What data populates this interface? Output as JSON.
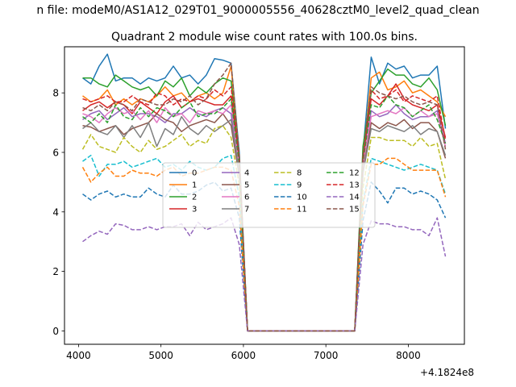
{
  "figure": {
    "suptitle": "n file: modeM0/AS1A12_029T01_9000005556_40628cztM0_level2_quad_clean",
    "offset_label": "+4.1824e8"
  },
  "chart_data": {
    "type": "line",
    "title": "Quadrant 2 module wise count rates with 100.0s bins.",
    "xlabel": "",
    "ylabel": "",
    "xlim": [
      3830,
      8680
    ],
    "ylim": [
      -0.45,
      9.55
    ],
    "x_offset": 418240000,
    "xticks": [
      4000,
      5000,
      6000,
      7000,
      8000
    ],
    "yticks": [
      0,
      2,
      4,
      6,
      8
    ],
    "grid": false,
    "legend_position": "center",
    "legend_columns": 4,
    "x": [
      4050,
      4150,
      4250,
      4350,
      4450,
      4550,
      4650,
      4750,
      4850,
      4950,
      5050,
      5150,
      5250,
      5350,
      5450,
      5550,
      5650,
      5750,
      5850,
      5950,
      6050,
      6150,
      6250,
      6350,
      6450,
      6550,
      6650,
      6750,
      6850,
      6950,
      7050,
      7150,
      7250,
      7350,
      7450,
      7550,
      7650,
      7750,
      7850,
      7950,
      8050,
      8150,
      8250,
      8350,
      8450
    ],
    "series": [
      {
        "name": "0",
        "style": "solid",
        "color": "#1f77b4",
        "values": [
          8.5,
          8.3,
          8.9,
          9.3,
          8.4,
          8.5,
          8.5,
          8.3,
          8.5,
          8.4,
          8.5,
          8.9,
          8.5,
          8.6,
          8.3,
          8.6,
          9.15,
          9.1,
          9.0,
          6.0,
          0,
          0,
          0,
          0,
          0,
          0,
          0,
          0,
          0,
          0,
          0,
          0,
          0,
          0,
          6.0,
          9.2,
          8.3,
          9.0,
          8.8,
          8.9,
          8.5,
          8.6,
          8.6,
          8.9,
          6.8
        ]
      },
      {
        "name": "1",
        "style": "solid",
        "color": "#ff7f0e",
        "values": [
          7.9,
          7.7,
          7.8,
          8.1,
          7.6,
          7.8,
          7.6,
          7.8,
          7.7,
          7.9,
          8.2,
          7.9,
          8.0,
          7.7,
          7.9,
          8.0,
          7.8,
          8.0,
          8.9,
          5.8,
          0,
          0,
          0,
          0,
          0,
          0,
          0,
          0,
          0,
          0,
          0,
          0,
          0,
          0,
          5.8,
          8.5,
          8.7,
          8.1,
          8.2,
          8.4,
          8.0,
          8.1,
          7.9,
          7.7,
          7.2
        ]
      },
      {
        "name": "2",
        "style": "solid",
        "color": "#2ca02c",
        "values": [
          8.5,
          8.5,
          8.3,
          8.2,
          8.6,
          8.4,
          8.2,
          8.1,
          8.2,
          7.9,
          8.4,
          8.2,
          8.5,
          7.9,
          8.2,
          8.0,
          8.3,
          8.5,
          8.4,
          5.8,
          0,
          0,
          0,
          0,
          0,
          0,
          0,
          0,
          0,
          0,
          0,
          0,
          0,
          0,
          6.2,
          8.0,
          8.4,
          8.8,
          8.6,
          8.6,
          8.3,
          8.2,
          8.5,
          8.1,
          6.9
        ]
      },
      {
        "name": "3",
        "style": "solid",
        "color": "#d62728",
        "values": [
          7.4,
          7.6,
          7.7,
          7.5,
          7.7,
          7.6,
          7.3,
          7.7,
          7.5,
          7.3,
          7.7,
          7.9,
          7.5,
          7.7,
          7.8,
          7.7,
          7.6,
          7.6,
          7.9,
          5.6,
          0,
          0,
          0,
          0,
          0,
          0,
          0,
          0,
          0,
          0,
          0,
          0,
          0,
          0,
          5.8,
          7.8,
          7.6,
          7.9,
          8.3,
          7.8,
          7.6,
          7.5,
          7.4,
          7.6,
          6.5
        ]
      },
      {
        "name": "4",
        "style": "solid",
        "color": "#9467bd",
        "values": [
          7.1,
          7.3,
          7.4,
          7.1,
          7.3,
          7.5,
          7.2,
          7.3,
          7.3,
          7.2,
          7.0,
          7.3,
          7.3,
          7.5,
          7.3,
          7.2,
          7.4,
          7.5,
          7.3,
          5.5,
          0,
          0,
          0,
          0,
          0,
          0,
          0,
          0,
          0,
          0,
          0,
          0,
          0,
          0,
          5.5,
          7.4,
          7.2,
          7.3,
          7.6,
          7.3,
          7.1,
          7.2,
          7.2,
          7.4,
          6.3
        ]
      },
      {
        "name": "5",
        "style": "solid",
        "color": "#8c564b",
        "values": [
          6.9,
          6.85,
          6.7,
          6.8,
          6.9,
          6.6,
          6.8,
          6.9,
          7.0,
          7.3,
          7.1,
          7.0,
          6.7,
          6.9,
          7.0,
          7.1,
          7.0,
          7.3,
          6.9,
          5.2,
          0,
          0,
          0,
          0,
          0,
          0,
          0,
          0,
          0,
          0,
          0,
          0,
          0,
          0,
          5.3,
          7.0,
          6.8,
          7.0,
          6.9,
          7.1,
          6.8,
          7.0,
          7.0,
          6.7,
          5.8
        ]
      },
      {
        "name": "6",
        "style": "solid",
        "color": "#e377c2",
        "values": [
          7.3,
          7.2,
          7.0,
          7.3,
          7.5,
          7.3,
          7.4,
          7.1,
          7.4,
          7.0,
          7.5,
          7.2,
          7.3,
          7.0,
          7.4,
          7.3,
          7.4,
          7.3,
          7.6,
          5.5,
          0,
          0,
          0,
          0,
          0,
          0,
          0,
          0,
          0,
          0,
          0,
          0,
          0,
          0,
          5.6,
          7.2,
          7.3,
          7.4,
          7.3,
          7.5,
          7.2,
          7.4,
          7.2,
          7.3,
          6.2
        ]
      },
      {
        "name": "7",
        "style": "solid",
        "color": "#7f7f7f",
        "values": [
          6.8,
          7.0,
          6.7,
          6.6,
          6.9,
          6.5,
          6.9,
          6.5,
          7.0,
          6.2,
          6.8,
          6.6,
          7.2,
          6.8,
          6.6,
          6.9,
          6.7,
          6.9,
          7.1,
          5.3,
          0,
          0,
          0,
          0,
          0,
          0,
          0,
          0,
          0,
          0,
          0,
          0,
          0,
          0,
          5.3,
          6.8,
          6.7,
          6.9,
          6.8,
          6.7,
          6.9,
          6.6,
          6.8,
          6.7,
          5.9
        ]
      },
      {
        "name": "8",
        "style": "dashed",
        "color": "#bcbd22",
        "values": [
          6.1,
          6.6,
          6.2,
          6.1,
          6.0,
          6.5,
          6.2,
          6.0,
          6.4,
          6.1,
          6.2,
          6.4,
          6.6,
          6.2,
          6.4,
          6.3,
          6.8,
          6.9,
          6.5,
          4.9,
          0,
          0,
          0,
          0,
          0,
          0,
          0,
          0,
          0,
          0,
          0,
          0,
          0,
          0,
          4.8,
          6.5,
          6.5,
          6.4,
          6.4,
          6.4,
          6.2,
          6.5,
          6.2,
          6.3,
          5.1
        ]
      },
      {
        "name": "9",
        "style": "dashed",
        "color": "#17becf",
        "values": [
          5.7,
          5.9,
          5.2,
          5.6,
          5.6,
          5.7,
          5.5,
          5.6,
          5.7,
          5.8,
          5.5,
          5.6,
          5.4,
          5.7,
          5.5,
          5.4,
          5.5,
          5.8,
          5.9,
          4.5,
          0,
          0,
          0,
          0,
          0,
          0,
          0,
          0,
          0,
          0,
          0,
          0,
          0,
          0,
          4.3,
          5.8,
          5.7,
          5.6,
          5.5,
          5.4,
          5.5,
          5.6,
          5.5,
          5.4,
          4.6
        ]
      },
      {
        "name": "10",
        "style": "dashed",
        "color": "#1f77b4",
        "values": [
          4.6,
          4.4,
          4.6,
          4.7,
          4.5,
          4.6,
          4.5,
          4.5,
          4.8,
          4.6,
          4.5,
          4.9,
          4.6,
          4.6,
          4.7,
          4.9,
          5.0,
          4.7,
          4.8,
          3.8,
          0,
          0,
          0,
          0,
          0,
          0,
          0,
          0,
          0,
          0,
          0,
          0,
          0,
          0,
          3.7,
          5.0,
          4.7,
          4.3,
          4.8,
          4.8,
          4.6,
          4.7,
          4.6,
          4.4,
          3.8
        ]
      },
      {
        "name": "11",
        "style": "dashed",
        "color": "#ff7f0e",
        "values": [
          5.5,
          5.0,
          5.3,
          5.5,
          5.2,
          5.2,
          5.4,
          5.3,
          5.3,
          5.2,
          5.4,
          5.5,
          5.2,
          5.3,
          5.3,
          5.4,
          5.5,
          5.5,
          5.4,
          4.2,
          0,
          0,
          0,
          0,
          0,
          0,
          0,
          0,
          0,
          0,
          0,
          0,
          0,
          0,
          4.2,
          5.6,
          5.6,
          5.8,
          5.8,
          5.6,
          5.4,
          5.4,
          5.4,
          5.4,
          4.5
        ]
      },
      {
        "name": "12",
        "style": "dashed",
        "color": "#2ca02c",
        "values": [
          7.2,
          7.0,
          7.3,
          7.0,
          7.6,
          7.2,
          7.1,
          7.5,
          7.2,
          7.5,
          7.4,
          7.2,
          7.5,
          7.7,
          7.2,
          7.3,
          7.3,
          7.5,
          7.8,
          5.6,
          0,
          0,
          0,
          0,
          0,
          0,
          0,
          0,
          0,
          0,
          0,
          0,
          0,
          0,
          5.7,
          7.6,
          7.5,
          7.9,
          7.6,
          7.5,
          7.2,
          7.4,
          7.6,
          7.1,
          6.3
        ]
      },
      {
        "name": "13",
        "style": "dashed",
        "color": "#d62728",
        "values": [
          7.8,
          7.7,
          7.8,
          7.9,
          7.7,
          7.7,
          7.9,
          7.7,
          7.6,
          8.0,
          7.9,
          7.6,
          7.8,
          7.7,
          7.9,
          7.8,
          8.1,
          7.9,
          8.2,
          5.8,
          0,
          0,
          0,
          0,
          0,
          0,
          0,
          0,
          0,
          0,
          0,
          0,
          0,
          0,
          5.8,
          8.1,
          7.8,
          7.9,
          8.1,
          7.7,
          7.9,
          7.8,
          7.7,
          7.9,
          6.4
        ]
      },
      {
        "name": "14",
        "style": "dashed",
        "color": "#9467bd",
        "values": [
          3.0,
          3.2,
          3.35,
          3.25,
          3.6,
          3.55,
          3.4,
          3.4,
          3.5,
          3.4,
          3.5,
          3.5,
          3.6,
          3.2,
          3.65,
          3.4,
          3.5,
          3.6,
          3.8,
          2.9,
          0,
          0,
          0,
          0,
          0,
          0,
          0,
          0,
          0,
          0,
          0,
          0,
          0,
          0,
          2.9,
          3.7,
          3.6,
          3.6,
          3.5,
          3.5,
          3.4,
          3.4,
          3.2,
          3.8,
          2.5
        ]
      },
      {
        "name": "15",
        "style": "dashed",
        "color": "#8c564b",
        "values": [
          7.5,
          7.4,
          7.6,
          7.4,
          7.7,
          7.6,
          7.4,
          7.8,
          7.7,
          7.6,
          7.6,
          7.8,
          7.7,
          7.9,
          7.6,
          7.8,
          8.3,
          8.6,
          9.0,
          5.9,
          0,
          0,
          0,
          0,
          0,
          0,
          0,
          0,
          0,
          0,
          0,
          0,
          0,
          0,
          5.9,
          8.2,
          8.0,
          7.9,
          7.8,
          7.9,
          7.7,
          7.6,
          7.7,
          7.6,
          6.1
        ]
      }
    ]
  }
}
